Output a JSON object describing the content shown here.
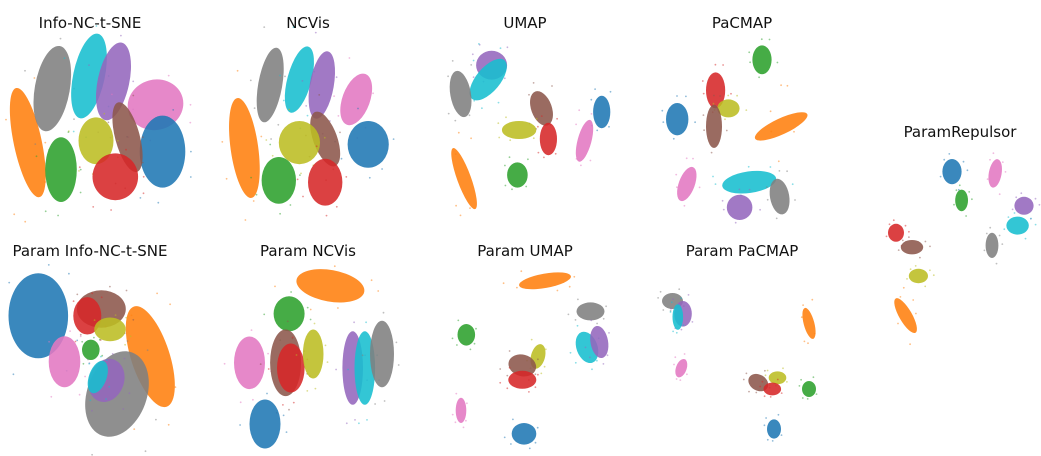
{
  "palette": {
    "blue": "#1f77b4",
    "orange": "#ff7f0e",
    "green": "#2ca02c",
    "red": "#d62728",
    "purple": "#9467bd",
    "brown": "#8c564b",
    "pink": "#e377c2",
    "gray": "#7f7f7f",
    "olive": "#bcbd22",
    "cyan": "#17becf"
  },
  "chart_data": [
    {
      "type": "scatter",
      "title": "Info-NC-t-SNE",
      "clusters": [
        {
          "color": "orange",
          "x": 0.13,
          "y": 0.57,
          "rx": 0.08,
          "ry": 0.31,
          "rot": -12
        },
        {
          "color": "gray",
          "x": 0.27,
          "y": 0.27,
          "rx": 0.1,
          "ry": 0.24,
          "rot": 10
        },
        {
          "color": "cyan",
          "x": 0.48,
          "y": 0.2,
          "rx": 0.09,
          "ry": 0.24,
          "rot": 12
        },
        {
          "color": "purple",
          "x": 0.62,
          "y": 0.23,
          "rx": 0.09,
          "ry": 0.22,
          "rot": 12
        },
        {
          "color": "pink",
          "x": 0.86,
          "y": 0.36,
          "rx": 0.16,
          "ry": 0.14,
          "rot": -15
        },
        {
          "color": "blue",
          "x": 0.9,
          "y": 0.62,
          "rx": 0.13,
          "ry": 0.2,
          "rot": 0
        },
        {
          "color": "brown",
          "x": 0.7,
          "y": 0.54,
          "rx": 0.07,
          "ry": 0.2,
          "rot": -15
        },
        {
          "color": "olive",
          "x": 0.52,
          "y": 0.56,
          "rx": 0.1,
          "ry": 0.13,
          "rot": 0
        },
        {
          "color": "green",
          "x": 0.32,
          "y": 0.72,
          "rx": 0.09,
          "ry": 0.18,
          "rot": 0
        },
        {
          "color": "red",
          "x": 0.63,
          "y": 0.76,
          "rx": 0.13,
          "ry": 0.13,
          "rot": 0
        }
      ]
    },
    {
      "type": "scatter",
      "title": "NCVis",
      "clusters": [
        {
          "color": "orange",
          "x": 0.13,
          "y": 0.6,
          "rx": 0.08,
          "ry": 0.28,
          "rot": -8
        },
        {
          "color": "gray",
          "x": 0.28,
          "y": 0.25,
          "rx": 0.07,
          "ry": 0.21,
          "rot": 10
        },
        {
          "color": "cyan",
          "x": 0.45,
          "y": 0.22,
          "rx": 0.07,
          "ry": 0.19,
          "rot": 15
        },
        {
          "color": "purple",
          "x": 0.58,
          "y": 0.25,
          "rx": 0.07,
          "ry": 0.19,
          "rot": 10
        },
        {
          "color": "pink",
          "x": 0.78,
          "y": 0.33,
          "rx": 0.08,
          "ry": 0.15,
          "rot": 20
        },
        {
          "color": "blue",
          "x": 0.85,
          "y": 0.58,
          "rx": 0.12,
          "ry": 0.13,
          "rot": 0
        },
        {
          "color": "brown",
          "x": 0.6,
          "y": 0.55,
          "rx": 0.07,
          "ry": 0.16,
          "rot": -20
        },
        {
          "color": "olive",
          "x": 0.45,
          "y": 0.57,
          "rx": 0.12,
          "ry": 0.12,
          "rot": 0
        },
        {
          "color": "green",
          "x": 0.33,
          "y": 0.78,
          "rx": 0.1,
          "ry": 0.13,
          "rot": 0
        },
        {
          "color": "red",
          "x": 0.6,
          "y": 0.79,
          "rx": 0.1,
          "ry": 0.13,
          "rot": 0
        }
      ]
    },
    {
      "type": "scatter",
      "title": "UMAP",
      "clusters": [
        {
          "color": "purple",
          "x": 0.3,
          "y": 0.14,
          "rx": 0.09,
          "ry": 0.08,
          "rot": 0
        },
        {
          "color": "cyan",
          "x": 0.28,
          "y": 0.22,
          "rx": 0.07,
          "ry": 0.14,
          "rot": 40
        },
        {
          "color": "gray",
          "x": 0.12,
          "y": 0.3,
          "rx": 0.06,
          "ry": 0.13,
          "rot": -10
        },
        {
          "color": "brown",
          "x": 0.59,
          "y": 0.38,
          "rx": 0.06,
          "ry": 0.1,
          "rot": -20
        },
        {
          "color": "olive",
          "x": 0.46,
          "y": 0.5,
          "rx": 0.1,
          "ry": 0.05,
          "rot": 0
        },
        {
          "color": "red",
          "x": 0.63,
          "y": 0.55,
          "rx": 0.05,
          "ry": 0.09,
          "rot": 0
        },
        {
          "color": "blue",
          "x": 0.94,
          "y": 0.4,
          "rx": 0.05,
          "ry": 0.09,
          "rot": 0
        },
        {
          "color": "pink",
          "x": 0.84,
          "y": 0.56,
          "rx": 0.04,
          "ry": 0.12,
          "rot": 15
        },
        {
          "color": "green",
          "x": 0.45,
          "y": 0.75,
          "rx": 0.06,
          "ry": 0.07,
          "rot": 0
        },
        {
          "color": "orange",
          "x": 0.14,
          "y": 0.77,
          "rx": 0.04,
          "ry": 0.18,
          "rot": -20
        }
      ]
    },
    {
      "type": "scatter",
      "title": "PaCMAP",
      "clusters": [
        {
          "color": "green",
          "x": 0.65,
          "y": 0.11,
          "rx": 0.06,
          "ry": 0.08,
          "rot": 0
        },
        {
          "color": "red",
          "x": 0.36,
          "y": 0.28,
          "rx": 0.06,
          "ry": 0.1,
          "rot": 0
        },
        {
          "color": "olive",
          "x": 0.44,
          "y": 0.38,
          "rx": 0.07,
          "ry": 0.05,
          "rot": 0
        },
        {
          "color": "brown",
          "x": 0.35,
          "y": 0.48,
          "rx": 0.05,
          "ry": 0.12,
          "rot": 0
        },
        {
          "color": "blue",
          "x": 0.12,
          "y": 0.44,
          "rx": 0.07,
          "ry": 0.09,
          "rot": 0
        },
        {
          "color": "orange",
          "x": 0.77,
          "y": 0.48,
          "rx": 0.05,
          "ry": 0.16,
          "rot": 65
        },
        {
          "color": "pink",
          "x": 0.18,
          "y": 0.8,
          "rx": 0.05,
          "ry": 0.1,
          "rot": 20
        },
        {
          "color": "cyan",
          "x": 0.57,
          "y": 0.79,
          "rx": 0.17,
          "ry": 0.06,
          "rot": -8
        },
        {
          "color": "gray",
          "x": 0.76,
          "y": 0.87,
          "rx": 0.06,
          "ry": 0.1,
          "rot": -10
        },
        {
          "color": "purple",
          "x": 0.51,
          "y": 0.93,
          "rx": 0.08,
          "ry": 0.07,
          "rot": 0
        }
      ]
    },
    {
      "type": "scatter",
      "title": "ParamRepulsor",
      "clusters": [
        {
          "color": "blue",
          "x": 0.45,
          "y": 0.12,
          "rx": 0.06,
          "ry": 0.07,
          "rot": 0
        },
        {
          "color": "pink",
          "x": 0.72,
          "y": 0.13,
          "rx": 0.04,
          "ry": 0.08,
          "rot": 10
        },
        {
          "color": "green",
          "x": 0.51,
          "y": 0.28,
          "rx": 0.04,
          "ry": 0.06,
          "rot": 0
        },
        {
          "color": "purple",
          "x": 0.9,
          "y": 0.31,
          "rx": 0.06,
          "ry": 0.05,
          "rot": 0
        },
        {
          "color": "cyan",
          "x": 0.86,
          "y": 0.42,
          "rx": 0.07,
          "ry": 0.05,
          "rot": 0
        },
        {
          "color": "gray",
          "x": 0.7,
          "y": 0.53,
          "rx": 0.04,
          "ry": 0.07,
          "rot": 0
        },
        {
          "color": "red",
          "x": 0.1,
          "y": 0.46,
          "rx": 0.05,
          "ry": 0.05,
          "rot": 0
        },
        {
          "color": "brown",
          "x": 0.2,
          "y": 0.54,
          "rx": 0.07,
          "ry": 0.04,
          "rot": 0
        },
        {
          "color": "olive",
          "x": 0.24,
          "y": 0.7,
          "rx": 0.06,
          "ry": 0.04,
          "rot": 0
        },
        {
          "color": "orange",
          "x": 0.16,
          "y": 0.92,
          "rx": 0.04,
          "ry": 0.11,
          "rot": -30
        }
      ]
    },
    {
      "type": "scatter",
      "title": "Param Info-NC-t-SNE",
      "clusters": [
        {
          "color": "blue",
          "x": 0.19,
          "y": 0.24,
          "rx": 0.17,
          "ry": 0.25,
          "rot": 0
        },
        {
          "color": "orange",
          "x": 0.83,
          "y": 0.48,
          "rx": 0.11,
          "ry": 0.31,
          "rot": -18
        },
        {
          "color": "brown",
          "x": 0.55,
          "y": 0.2,
          "rx": 0.14,
          "ry": 0.11,
          "rot": 0
        },
        {
          "color": "red",
          "x": 0.47,
          "y": 0.24,
          "rx": 0.08,
          "ry": 0.11,
          "rot": 0
        },
        {
          "color": "olive",
          "x": 0.6,
          "y": 0.32,
          "rx": 0.09,
          "ry": 0.07,
          "rot": 0
        },
        {
          "color": "pink",
          "x": 0.34,
          "y": 0.51,
          "rx": 0.09,
          "ry": 0.15,
          "rot": 0
        },
        {
          "color": "green",
          "x": 0.49,
          "y": 0.44,
          "rx": 0.05,
          "ry": 0.06,
          "rot": 0
        },
        {
          "color": "gray",
          "x": 0.64,
          "y": 0.7,
          "rx": 0.17,
          "ry": 0.26,
          "rot": 20
        },
        {
          "color": "purple",
          "x": 0.58,
          "y": 0.62,
          "rx": 0.1,
          "ry": 0.13,
          "rot": 20
        },
        {
          "color": "cyan",
          "x": 0.53,
          "y": 0.6,
          "rx": 0.05,
          "ry": 0.1,
          "rot": 20
        }
      ]
    },
    {
      "type": "scatter",
      "title": "Param NCVis",
      "clusters": [
        {
          "color": "orange",
          "x": 0.63,
          "y": 0.09,
          "rx": 0.2,
          "ry": 0.09,
          "rot": 10
        },
        {
          "color": "green",
          "x": 0.39,
          "y": 0.25,
          "rx": 0.09,
          "ry": 0.1,
          "rot": 0
        },
        {
          "color": "pink",
          "x": 0.16,
          "y": 0.53,
          "rx": 0.09,
          "ry": 0.15,
          "rot": 0
        },
        {
          "color": "brown",
          "x": 0.37,
          "y": 0.53,
          "rx": 0.09,
          "ry": 0.19,
          "rot": 0
        },
        {
          "color": "red",
          "x": 0.4,
          "y": 0.56,
          "rx": 0.08,
          "ry": 0.14,
          "rot": 0
        },
        {
          "color": "olive",
          "x": 0.53,
          "y": 0.48,
          "rx": 0.06,
          "ry": 0.14,
          "rot": 0
        },
        {
          "color": "purple",
          "x": 0.76,
          "y": 0.56,
          "rx": 0.06,
          "ry": 0.21,
          "rot": 0
        },
        {
          "color": "cyan",
          "x": 0.83,
          "y": 0.56,
          "rx": 0.06,
          "ry": 0.21,
          "rot": 0
        },
        {
          "color": "gray",
          "x": 0.93,
          "y": 0.48,
          "rx": 0.07,
          "ry": 0.19,
          "rot": 0
        },
        {
          "color": "blue",
          "x": 0.25,
          "y": 0.88,
          "rx": 0.09,
          "ry": 0.14,
          "rot": 0
        }
      ]
    },
    {
      "type": "scatter",
      "title": "Param UMAP",
      "clusters": [
        {
          "color": "orange",
          "x": 0.6,
          "y": 0.06,
          "rx": 0.15,
          "ry": 0.04,
          "rot": -10
        },
        {
          "color": "gray",
          "x": 0.86,
          "y": 0.23,
          "rx": 0.08,
          "ry": 0.05,
          "rot": 0
        },
        {
          "color": "green",
          "x": 0.15,
          "y": 0.36,
          "rx": 0.05,
          "ry": 0.06,
          "rot": 0
        },
        {
          "color": "cyan",
          "x": 0.84,
          "y": 0.43,
          "rx": 0.06,
          "ry": 0.09,
          "rot": -20
        },
        {
          "color": "purple",
          "x": 0.91,
          "y": 0.4,
          "rx": 0.05,
          "ry": 0.09,
          "rot": -10
        },
        {
          "color": "olive",
          "x": 0.56,
          "y": 0.48,
          "rx": 0.04,
          "ry": 0.07,
          "rot": 15
        },
        {
          "color": "brown",
          "x": 0.47,
          "y": 0.53,
          "rx": 0.08,
          "ry": 0.06,
          "rot": 15
        },
        {
          "color": "red",
          "x": 0.47,
          "y": 0.61,
          "rx": 0.08,
          "ry": 0.05,
          "rot": 0
        },
        {
          "color": "pink",
          "x": 0.12,
          "y": 0.78,
          "rx": 0.03,
          "ry": 0.07,
          "rot": 0
        },
        {
          "color": "blue",
          "x": 0.48,
          "y": 0.91,
          "rx": 0.07,
          "ry": 0.06,
          "rot": 0
        }
      ]
    },
    {
      "type": "scatter",
      "title": "Param PaCMAP",
      "clusters": [
        {
          "color": "gray",
          "x": 0.1,
          "y": 0.1,
          "rx": 0.06,
          "ry": 0.05,
          "rot": 0
        },
        {
          "color": "purple",
          "x": 0.16,
          "y": 0.18,
          "rx": 0.05,
          "ry": 0.08,
          "rot": 0
        },
        {
          "color": "cyan",
          "x": 0.13,
          "y": 0.2,
          "rx": 0.03,
          "ry": 0.08,
          "rot": 0
        },
        {
          "color": "orange",
          "x": 0.88,
          "y": 0.24,
          "rx": 0.03,
          "ry": 0.1,
          "rot": -15
        },
        {
          "color": "pink",
          "x": 0.15,
          "y": 0.52,
          "rx": 0.03,
          "ry": 0.06,
          "rot": 20
        },
        {
          "color": "brown",
          "x": 0.59,
          "y": 0.61,
          "rx": 0.06,
          "ry": 0.05,
          "rot": 30
        },
        {
          "color": "olive",
          "x": 0.7,
          "y": 0.58,
          "rx": 0.05,
          "ry": 0.04,
          "rot": 0
        },
        {
          "color": "red",
          "x": 0.67,
          "y": 0.65,
          "rx": 0.05,
          "ry": 0.04,
          "rot": 0
        },
        {
          "color": "green",
          "x": 0.88,
          "y": 0.65,
          "rx": 0.04,
          "ry": 0.05,
          "rot": 0
        },
        {
          "color": "blue",
          "x": 0.68,
          "y": 0.9,
          "rx": 0.04,
          "ry": 0.06,
          "rot": 0
        }
      ]
    }
  ]
}
